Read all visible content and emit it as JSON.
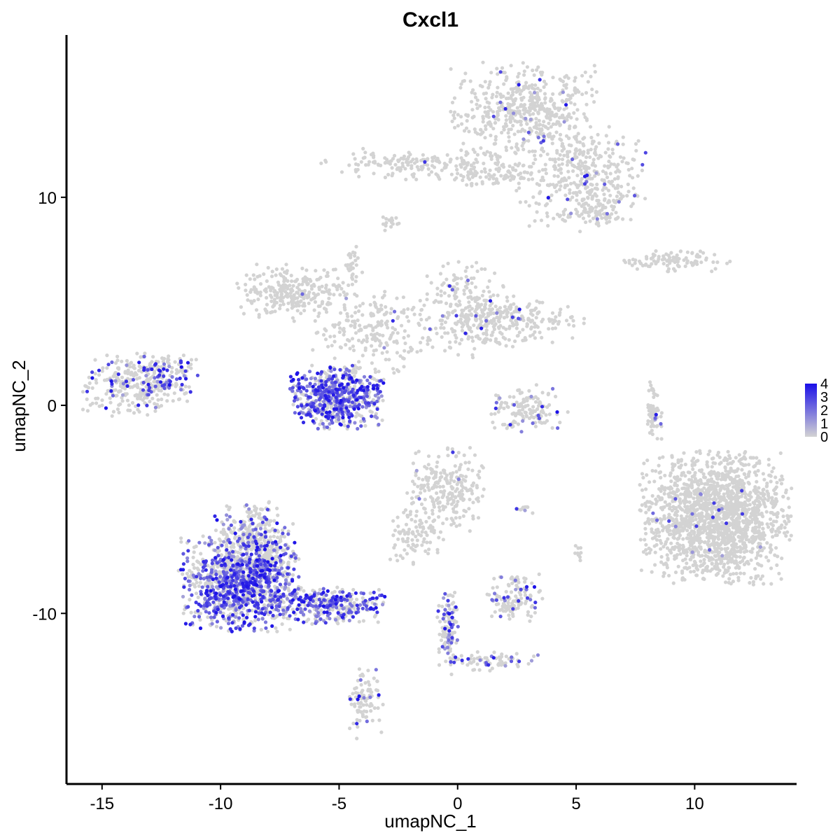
{
  "chart_data": {
    "type": "scatter",
    "title": "Cxcl1",
    "xlabel": "umapNC_1",
    "ylabel": "umapNC_2",
    "xlim": [
      -16.5,
      14.3
    ],
    "ylim": [
      -18.2,
      17.8
    ],
    "xticks": [
      -15,
      -10,
      -5,
      0,
      5,
      10
    ],
    "xtick_labels": [
      "-15",
      "-10",
      "-5",
      "0",
      "5",
      "10"
    ],
    "yticks": [
      -10,
      0,
      10
    ],
    "ytick_labels": [
      "-10",
      "0",
      "10"
    ],
    "grid": false,
    "legend": {
      "placement": "right",
      "labels": [
        "4",
        "3",
        "2",
        "1",
        "0"
      ],
      "values": [
        4,
        3,
        2,
        1,
        0
      ],
      "low_color": "#d3d3d3",
      "high_color": "#1a0fe8"
    },
    "low_color": "#d3d3d3",
    "high_color": "#1a0fe8",
    "clusters": [
      {
        "name": "top-upper-blob",
        "cx": 2.8,
        "cy": 14.2,
        "rx": 2.1,
        "ry": 1.5,
        "n": 500,
        "expr": 0.02
      },
      {
        "name": "top-right-lobe",
        "cx": 5.2,
        "cy": 11.0,
        "rx": 1.8,
        "ry": 1.6,
        "n": 380,
        "expr": 0.05
      },
      {
        "name": "top-left-arm",
        "cx": -1.5,
        "cy": 11.6,
        "rx": 2.8,
        "ry": 0.5,
        "n": 180,
        "expr": 0.02
      },
      {
        "name": "top-arm-end",
        "cx": 1.5,
        "cy": 11.0,
        "rx": 1.2,
        "ry": 0.4,
        "n": 80,
        "expr": 0.02
      },
      {
        "name": "lower-right-tail",
        "cx": 5.6,
        "cy": 9.2,
        "rx": 0.9,
        "ry": 0.6,
        "n": 70,
        "expr": 0.1
      },
      {
        "name": "small-top-dot",
        "cx": -2.9,
        "cy": 8.8,
        "rx": 0.3,
        "ry": 0.3,
        "n": 15,
        "expr": 0.0
      },
      {
        "name": "right-thin-strip",
        "cx": 9.3,
        "cy": 6.9,
        "rx": 1.5,
        "ry": 0.35,
        "n": 100,
        "expr": 0.0
      },
      {
        "name": "mid-left-blob",
        "cx": -6.8,
        "cy": 5.4,
        "rx": 1.7,
        "ry": 0.9,
        "n": 260,
        "expr": 0.02
      },
      {
        "name": "mid-center",
        "cx": -3.6,
        "cy": 3.6,
        "rx": 1.7,
        "ry": 1.4,
        "n": 220,
        "expr": 0.03
      },
      {
        "name": "mid-right-lobe",
        "cx": 0.5,
        "cy": 4.6,
        "rx": 1.4,
        "ry": 1.5,
        "n": 230,
        "expr": 0.04
      },
      {
        "name": "mid-far-right",
        "cx": 2.4,
        "cy": 4.0,
        "rx": 2.0,
        "ry": 0.7,
        "n": 200,
        "expr": 0.02
      },
      {
        "name": "mid-spike",
        "cx": -4.4,
        "cy": 6.8,
        "rx": 0.3,
        "ry": 0.8,
        "n": 30,
        "expr": 0.0
      },
      {
        "name": "left-island",
        "cx": -13.6,
        "cy": 1.0,
        "rx": 1.5,
        "ry": 1.0,
        "n": 300,
        "expr": 0.15
      },
      {
        "name": "left-island-tip",
        "cx": -12.1,
        "cy": 1.5,
        "rx": 0.8,
        "ry": 0.8,
        "n": 80,
        "expr": 0.35
      },
      {
        "name": "center-expressing-blob",
        "cx": -5.1,
        "cy": 0.4,
        "rx": 1.3,
        "ry": 1.0,
        "n": 620,
        "expr": 0.6
      },
      {
        "name": "center-small-right",
        "cx": 3.0,
        "cy": -0.2,
        "rx": 1.1,
        "ry": 0.8,
        "n": 140,
        "expr": 0.08
      },
      {
        "name": "right-vertical-strip",
        "cx": 8.3,
        "cy": -0.3,
        "rx": 0.25,
        "ry": 1.1,
        "n": 60,
        "expr": 0.05
      },
      {
        "name": "right-large-blob",
        "cx": 10.9,
        "cy": -5.4,
        "rx": 2.1,
        "ry": 2.1,
        "n": 1700,
        "expr": 0.01
      },
      {
        "name": "mid-lower-blob",
        "cx": -0.5,
        "cy": -4.1,
        "rx": 1.1,
        "ry": 1.4,
        "n": 240,
        "expr": 0.02
      },
      {
        "name": "mid-lower-stem",
        "cx": -1.8,
        "cy": -6.3,
        "rx": 0.8,
        "ry": 1.0,
        "n": 90,
        "expr": 0.02
      },
      {
        "name": "lower-small-dot",
        "cx": 2.8,
        "cy": -5.0,
        "rx": 0.3,
        "ry": 0.15,
        "n": 10,
        "expr": 0.3
      },
      {
        "name": "lower-tiny-dot",
        "cx": 5.1,
        "cy": -7.1,
        "rx": 0.15,
        "ry": 0.3,
        "n": 10,
        "expr": 0.0
      },
      {
        "name": "lower-left-large",
        "cx": -9.2,
        "cy": -8.6,
        "rx": 1.7,
        "ry": 1.5,
        "n": 1100,
        "expr": 0.55
      },
      {
        "name": "lower-left-upper",
        "cx": -8.6,
        "cy": -6.6,
        "rx": 1.1,
        "ry": 1.3,
        "n": 380,
        "expr": 0.2
      },
      {
        "name": "lower-left-arm",
        "cx": -5.5,
        "cy": -9.6,
        "rx": 1.6,
        "ry": 0.6,
        "n": 320,
        "expr": 0.55
      },
      {
        "name": "lower-left-tail",
        "cx": -3.9,
        "cy": -14.2,
        "rx": 0.5,
        "ry": 1.2,
        "n": 90,
        "expr": 0.1
      },
      {
        "name": "lower-small-blob",
        "cx": 2.4,
        "cy": -9.3,
        "rx": 0.8,
        "ry": 0.8,
        "n": 130,
        "expr": 0.12
      },
      {
        "name": "lower-diagonal-stem",
        "cx": -0.4,
        "cy": -10.8,
        "rx": 0.3,
        "ry": 1.4,
        "n": 110,
        "expr": 0.3
      },
      {
        "name": "lower-diagonal-arm",
        "cx": 1.5,
        "cy": -12.3,
        "rx": 1.4,
        "ry": 0.3,
        "n": 70,
        "expr": 0.2
      }
    ]
  }
}
